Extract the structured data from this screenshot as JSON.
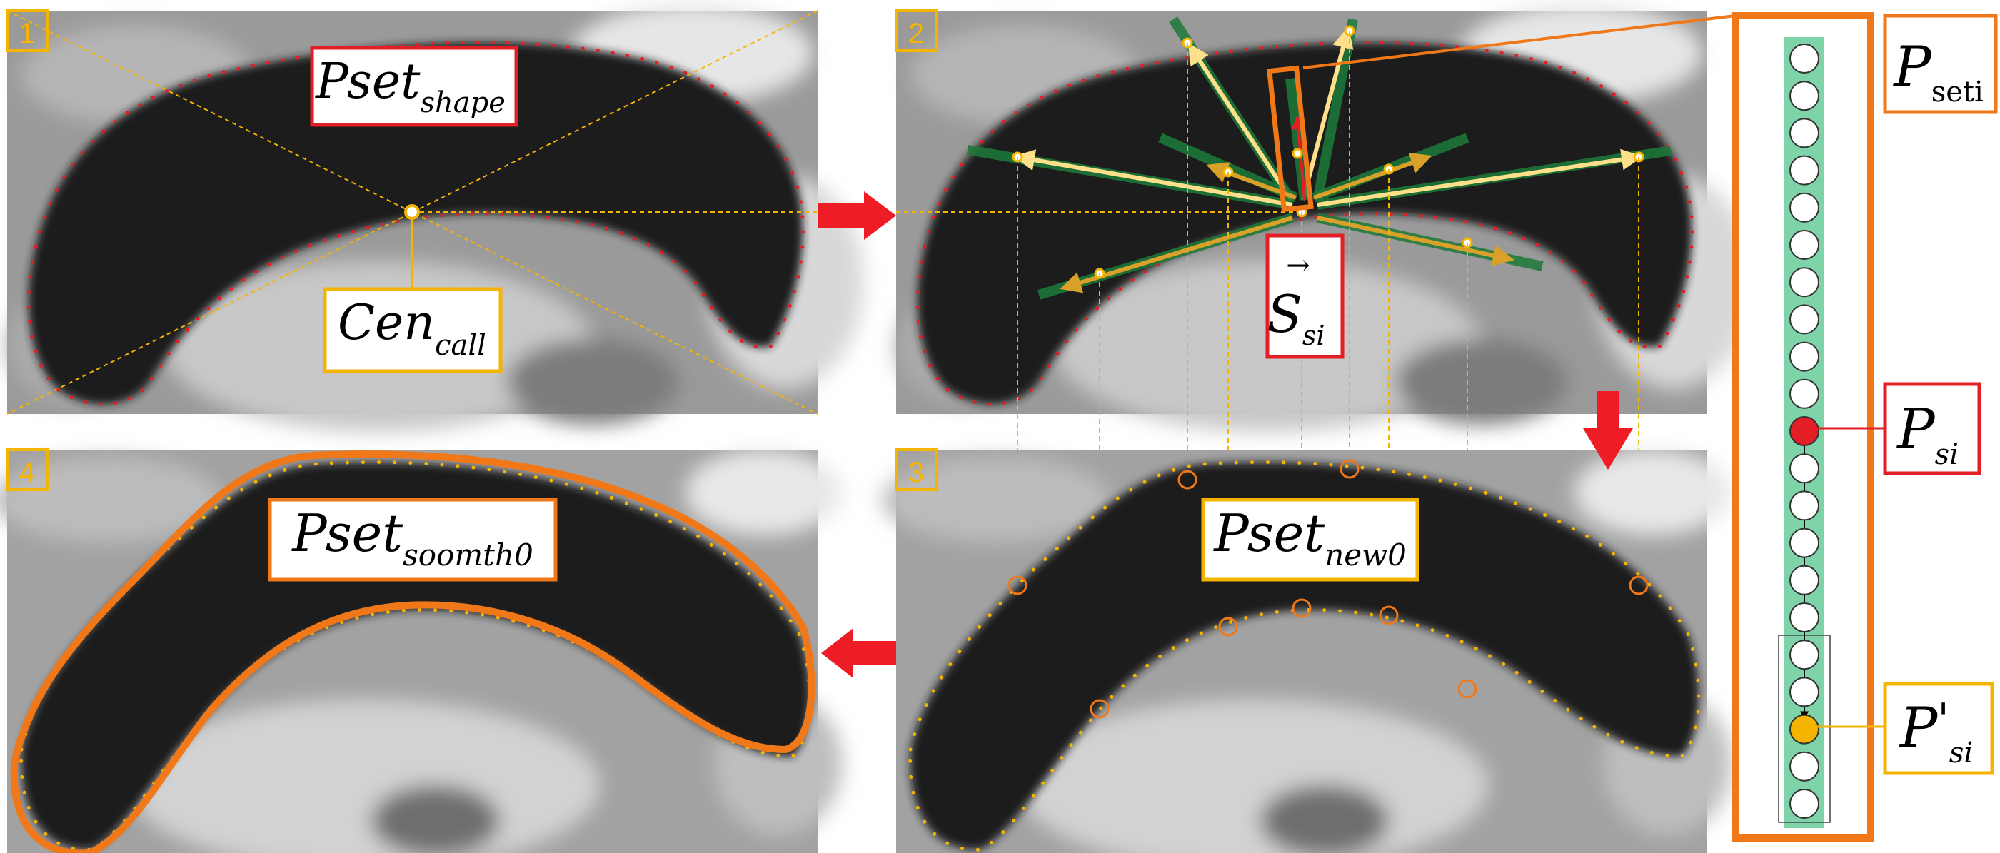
{
  "panels": {
    "p1": {
      "number": "1",
      "label_main": "Pset",
      "label_sub": "shape",
      "center_main": "Cen",
      "center_sub": "call"
    },
    "p2": {
      "number": "2",
      "vector_main": "S",
      "vector_sub": "si",
      "vector_arrow": "→"
    },
    "p3": {
      "number": "3",
      "label_main": "Pset",
      "label_sub": "new0"
    },
    "p4": {
      "number": "4",
      "label_main": "Pset",
      "label_sub": "soomth0"
    }
  },
  "column": {
    "pseti_main": "P",
    "pseti_sub": "seti",
    "psi_main": "P",
    "psi_sub": "si",
    "ppsi_main": "P",
    "ppsi_prime": "'",
    "ppsi_sub": "si",
    "circle_count": 21,
    "red_index": 10,
    "yellow_index": 18
  },
  "colors": {
    "frame_yellow": "#f4b400",
    "marker_red": "#e31e24",
    "contour_orange": "#f07818",
    "ray_green": "#1d7a3a",
    "column_green": "#7fd3a8"
  }
}
